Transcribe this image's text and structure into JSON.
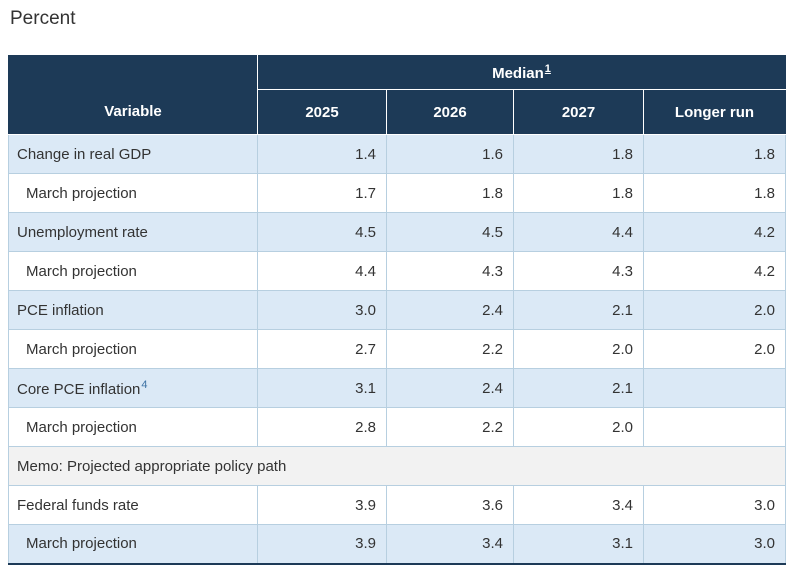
{
  "page_title": "Percent",
  "colors": {
    "header_bg": "#1d3a57",
    "header_text": "#ffffff",
    "row_highlight_bg": "#dbe9f6",
    "row_plain_bg": "#ffffff",
    "memo_row_bg": "#f2f2f2",
    "grid_border": "#b7cfe0",
    "body_text": "#333333",
    "footnote_link": "#3d72a4"
  },
  "table": {
    "header": {
      "variable_label": "Variable",
      "group_label": "Median",
      "group_footnote": "1",
      "columns": [
        "2025",
        "2026",
        "2027",
        "Longer run"
      ]
    },
    "rows": [
      {
        "label": "Change in real GDP",
        "values": [
          "1.4",
          "1.6",
          "1.8",
          "1.8"
        ]
      },
      {
        "label": "March projection",
        "values": [
          "1.7",
          "1.8",
          "1.8",
          "1.8"
        ]
      },
      {
        "label": "Unemployment rate",
        "values": [
          "4.5",
          "4.5",
          "4.4",
          "4.2"
        ]
      },
      {
        "label": "March projection",
        "values": [
          "4.4",
          "4.3",
          "4.3",
          "4.2"
        ]
      },
      {
        "label": "PCE inflation",
        "values": [
          "3.0",
          "2.4",
          "2.1",
          "2.0"
        ]
      },
      {
        "label": "March projection",
        "values": [
          "2.7",
          "2.2",
          "2.0",
          "2.0"
        ]
      },
      {
        "label": "Core PCE inflation",
        "footnote": "4",
        "values": [
          "3.1",
          "2.4",
          "2.1",
          ""
        ]
      },
      {
        "label": "March projection",
        "values": [
          "2.8",
          "2.2",
          "2.0",
          ""
        ]
      },
      {
        "label": "Memo: Projected appropriate policy path"
      },
      {
        "label": "Federal funds rate",
        "values": [
          "3.9",
          "3.6",
          "3.4",
          "3.0"
        ]
      },
      {
        "label": "March projection",
        "values": [
          "3.9",
          "3.4",
          "3.1",
          "3.0"
        ]
      }
    ]
  },
  "chart_data": {
    "type": "table",
    "title": "Percent",
    "group_header": "Median",
    "columns": [
      "Variable",
      "2025",
      "2026",
      "2027",
      "Longer run"
    ],
    "rows": [
      [
        "Change in real GDP",
        1.4,
        1.6,
        1.8,
        1.8
      ],
      [
        "March projection",
        1.7,
        1.8,
        1.8,
        1.8
      ],
      [
        "Unemployment rate",
        4.5,
        4.5,
        4.4,
        4.2
      ],
      [
        "March projection",
        4.4,
        4.3,
        4.3,
        4.2
      ],
      [
        "PCE inflation",
        3.0,
        2.4,
        2.1,
        2.0
      ],
      [
        "March projection",
        2.7,
        2.2,
        2.0,
        2.0
      ],
      [
        "Core PCE inflation (4)",
        3.1,
        2.4,
        2.1,
        null
      ],
      [
        "March projection",
        2.8,
        2.2,
        2.0,
        null
      ],
      [
        "Memo: Projected appropriate policy path",
        null,
        null,
        null,
        null
      ],
      [
        "Federal funds rate",
        3.9,
        3.6,
        3.4,
        3.0
      ],
      [
        "March projection",
        3.9,
        3.4,
        3.1,
        3.0
      ]
    ]
  }
}
